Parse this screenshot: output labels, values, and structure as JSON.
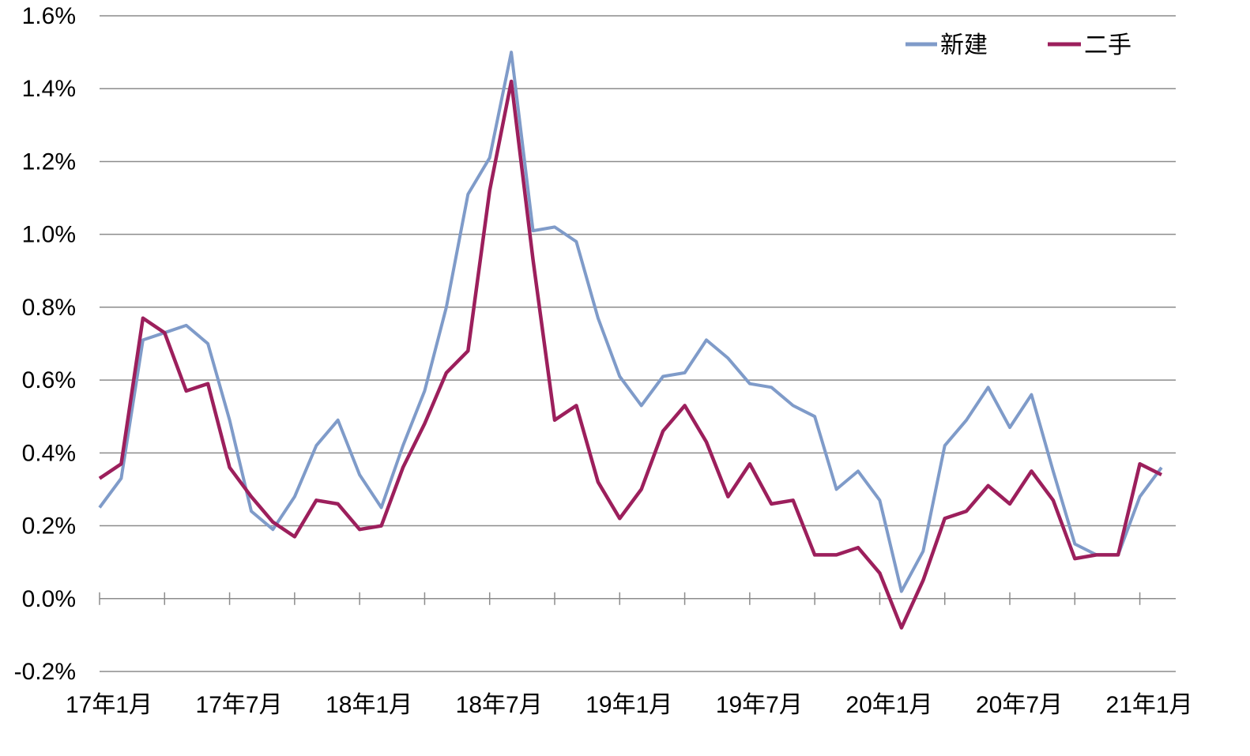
{
  "chart_data": {
    "type": "line",
    "x": [
      "17年1月",
      "17年2月",
      "17年3月",
      "17年4月",
      "17年5月",
      "17年6月",
      "17年7月",
      "17年8月",
      "17年9月",
      "17年10月",
      "17年11月",
      "17年12月",
      "18年1月",
      "18年2月",
      "18年3月",
      "18年4月",
      "18年5月",
      "18年6月",
      "18年7月",
      "18年8月",
      "18年9月",
      "18年10月",
      "18年11月",
      "18年12月",
      "19年1月",
      "19年2月",
      "19年3月",
      "19年4月",
      "19年5月",
      "19年6月",
      "19年7月",
      "19年8月",
      "19年9月",
      "19年10月",
      "19年11月",
      "19年12月",
      "20年1月",
      "20年2月",
      "20年3月",
      "20年4月",
      "20年5月",
      "20年6月",
      "20年7月",
      "20年8月",
      "20年9月",
      "20年10月",
      "20年11月",
      "20年12月",
      "21年1月",
      "21年2月"
    ],
    "tick_labels": [
      "17年1月",
      "17年7月",
      "18年1月",
      "18年7月",
      "19年1月",
      "19年7月",
      "20年1月",
      "20年7月",
      "21年1月"
    ],
    "tick_indices": [
      0,
      6,
      12,
      18,
      24,
      30,
      36,
      42,
      48
    ],
    "series": [
      {
        "name": "新建",
        "color": "#7f9bc9",
        "values": [
          0.25,
          0.33,
          0.71,
          0.73,
          0.75,
          0.7,
          0.49,
          0.24,
          0.19,
          0.28,
          0.42,
          0.49,
          0.34,
          0.25,
          0.42,
          0.57,
          0.8,
          1.11,
          1.21,
          1.5,
          1.01,
          1.02,
          0.98,
          0.77,
          0.61,
          0.53,
          0.61,
          0.62,
          0.71,
          0.66,
          0.59,
          0.58,
          0.53,
          0.5,
          0.3,
          0.35,
          0.27,
          0.02,
          0.13,
          0.42,
          0.49,
          0.58,
          0.47,
          0.56,
          0.35,
          0.15,
          0.12,
          0.12,
          0.28,
          0.36
        ]
      },
      {
        "name": "二手",
        "color": "#9c1f5c",
        "values": [
          0.33,
          0.37,
          0.77,
          0.73,
          0.57,
          0.59,
          0.36,
          0.28,
          0.21,
          0.17,
          0.27,
          0.26,
          0.19,
          0.2,
          0.36,
          0.48,
          0.62,
          0.68,
          1.12,
          1.42,
          0.93,
          0.49,
          0.53,
          0.32,
          0.22,
          0.3,
          0.46,
          0.53,
          0.43,
          0.28,
          0.37,
          0.26,
          0.27,
          0.12,
          0.12,
          0.14,
          0.07,
          -0.08,
          0.05,
          0.22,
          0.24,
          0.31,
          0.26,
          0.35,
          0.27,
          0.11,
          0.12,
          0.12,
          0.37,
          0.34
        ]
      }
    ],
    "yticks": [
      "1.6%",
      "1.4%",
      "1.2%",
      "1.0%",
      "0.8%",
      "0.6%",
      "0.4%",
      "0.2%",
      "0.0%",
      "-0.2%"
    ],
    "ytick_values": [
      1.6,
      1.4,
      1.2,
      1.0,
      0.8,
      0.6,
      0.4,
      0.2,
      0.0,
      -0.2
    ],
    "ylim": [
      -0.2,
      1.6
    ],
    "title": "",
    "xlabel": "",
    "ylabel": "",
    "grid": true,
    "legend_position": "top-right"
  }
}
